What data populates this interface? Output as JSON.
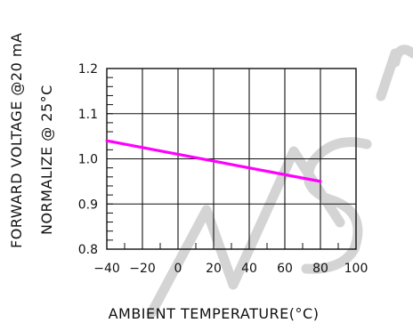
{
  "chart_data": {
    "type": "line",
    "x": [
      -40,
      80
    ],
    "series": [
      {
        "values": [
          1.04,
          0.95
        ],
        "color": "#ff00ff"
      }
    ],
    "xlabel": "AMBIENT TEMPERATURE(°C)",
    "ylabel_lines": [
      "FORWARD VOLTAGE @20 mA",
      "NORMALIZE @ 25°C"
    ],
    "xlim": [
      -40,
      100
    ],
    "ylim": [
      0.8,
      1.2
    ],
    "x_ticks": [
      -40,
      -20,
      0,
      20,
      40,
      60,
      80,
      100
    ],
    "x_tick_labels": [
      "−40",
      "−20",
      "0",
      "20",
      "40",
      "60",
      "80",
      "100"
    ],
    "y_ticks": [
      0.8,
      0.9,
      1.0,
      1.1,
      1.2
    ],
    "y_tick_labels": [
      "0.8",
      "0.9",
      "1.0",
      "1.1",
      "1.2"
    ],
    "grid": true,
    "watermark_text": "w.sic",
    "watermark_color": "#cccccc"
  }
}
